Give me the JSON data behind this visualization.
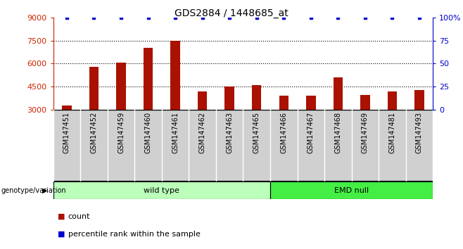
{
  "title": "GDS2884 / 1448685_at",
  "samples": [
    "GSM147451",
    "GSM147452",
    "GSM147459",
    "GSM147460",
    "GSM147461",
    "GSM147462",
    "GSM147463",
    "GSM147465",
    "GSM147466",
    "GSM147467",
    "GSM147468",
    "GSM147469",
    "GSM147481",
    "GSM147493"
  ],
  "counts": [
    3250,
    5800,
    6050,
    7000,
    7500,
    4200,
    4500,
    4600,
    3900,
    3900,
    5100,
    3950,
    4200,
    4250
  ],
  "percentile_ranks": [
    100,
    100,
    100,
    100,
    100,
    100,
    100,
    100,
    100,
    100,
    100,
    100,
    100,
    100
  ],
  "ylim_left": [
    3000,
    9000
  ],
  "ylim_right": [
    0,
    100
  ],
  "yticks_left": [
    3000,
    4500,
    6000,
    7500,
    9000
  ],
  "yticks_right": [
    0,
    25,
    50,
    75,
    100
  ],
  "left_tick_color": "#cc2200",
  "right_tick_color": "#0000cc",
  "bar_color": "#aa1100",
  "dot_color": "#0000cc",
  "bar_width": 0.35,
  "grid_color": "#000000",
  "wild_type_count": 8,
  "groups": [
    {
      "label": "wild type",
      "color": "#bbffbb"
    },
    {
      "label": "EMD null",
      "color": "#44ee44"
    }
  ],
  "genotype_label": "genotype/variation",
  "legend_count_label": "count",
  "legend_percentile_label": "percentile rank within the sample",
  "label_bg_color": "#d0d0d0",
  "plot_bg": "#ffffff",
  "title_fontsize": 10,
  "axis_fontsize": 8,
  "tick_label_fontsize": 7,
  "group_label_fontsize": 8,
  "legend_fontsize": 8
}
